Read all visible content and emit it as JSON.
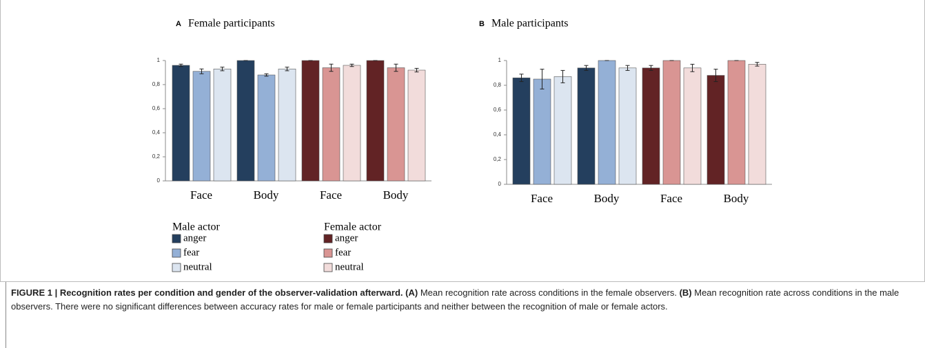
{
  "chart_data": [
    {
      "type": "bar",
      "panel": "A",
      "title": "Female participants",
      "categories": [
        "Face",
        "Body",
        "Face",
        "Body"
      ],
      "ylim": [
        0,
        1
      ],
      "yticks": [
        0,
        {
          "value": 0.2,
          "label": "0,2"
        },
        {
          "value": 0.4,
          "label": "0,4"
        },
        {
          "value": 0.6,
          "label": "0,6"
        },
        {
          "value": 0.8,
          "label": "0,8"
        },
        1
      ],
      "legend_groups": [
        "Male actor",
        "Female actor"
      ],
      "series": [
        {
          "name": "anger",
          "color": "#243f5e",
          "values": [
            0.96,
            1.0,
            null,
            null
          ],
          "errors": [
            0.01,
            0.0,
            null,
            null
          ]
        },
        {
          "name": "fear",
          "color": "#94b0d6",
          "values": [
            0.91,
            0.88,
            null,
            null
          ],
          "errors": [
            0.02,
            0.01,
            null,
            null
          ]
        },
        {
          "name": "neutral",
          "color": "#dce5f0",
          "values": [
            0.93,
            0.93,
            null,
            null
          ],
          "errors": [
            0.015,
            0.015,
            null,
            null
          ]
        },
        {
          "name": "anger",
          "color": "#622325",
          "values": [
            null,
            null,
            1.0,
            1.0
          ],
          "errors": [
            null,
            null,
            0.0,
            0.0
          ]
        },
        {
          "name": "fear",
          "color": "#d99593",
          "values": [
            null,
            null,
            0.94,
            0.94
          ],
          "errors": [
            null,
            null,
            0.03,
            0.03
          ]
        },
        {
          "name": "neutral",
          "color": "#f2dcdb",
          "values": [
            null,
            null,
            0.96,
            0.92
          ],
          "errors": [
            null,
            null,
            0.01,
            0.015
          ]
        }
      ]
    },
    {
      "type": "bar",
      "panel": "B",
      "title": "Male participants",
      "categories": [
        "Face",
        "Body",
        "Face",
        "Body"
      ],
      "ylim": [
        0,
        1
      ],
      "yticks": [
        0,
        {
          "value": 0.2,
          "label": "0,2"
        },
        {
          "value": 0.4,
          "label": "0,4"
        },
        {
          "value": 0.6,
          "label": "0,6"
        },
        {
          "value": 0.8,
          "label": "0,8"
        },
        1
      ],
      "series": [
        {
          "color": "#243f5e",
          "values": [
            0.86,
            0.94,
            null,
            null
          ],
          "errors": [
            0.03,
            0.02,
            null,
            null
          ]
        },
        {
          "color": "#94b0d6",
          "values": [
            0.85,
            1.0,
            null,
            null
          ],
          "errors": [
            0.08,
            0.0,
            null,
            null
          ]
        },
        {
          "color": "#dce5f0",
          "values": [
            0.87,
            0.94,
            null,
            null
          ],
          "errors": [
            0.05,
            0.02,
            null,
            null
          ]
        },
        {
          "color": "#622325",
          "values": [
            null,
            null,
            0.94,
            0.88
          ],
          "errors": [
            null,
            null,
            0.02,
            0.05
          ]
        },
        {
          "color": "#d99593",
          "values": [
            null,
            null,
            1.0,
            1.0
          ],
          "errors": [
            null,
            null,
            0.0,
            0.0
          ]
        },
        {
          "color": "#f2dcdb",
          "values": [
            null,
            null,
            0.94,
            0.97
          ],
          "errors": [
            null,
            null,
            0.03,
            0.015
          ]
        }
      ]
    }
  ],
  "caption": {
    "label": "FIGURE 1 | Recognition rates per condition and gender of the observer-validation afterward.",
    "a_label": "(A)",
    "a_text": "Mean recognition rate across conditions in the female observers.",
    "b_label": "(B)",
    "b_text": "Mean recognition rate across conditions in the male observers. There were no significant differences between accuracy rates for male or female participants and neither between the recognition of male or female actors."
  }
}
